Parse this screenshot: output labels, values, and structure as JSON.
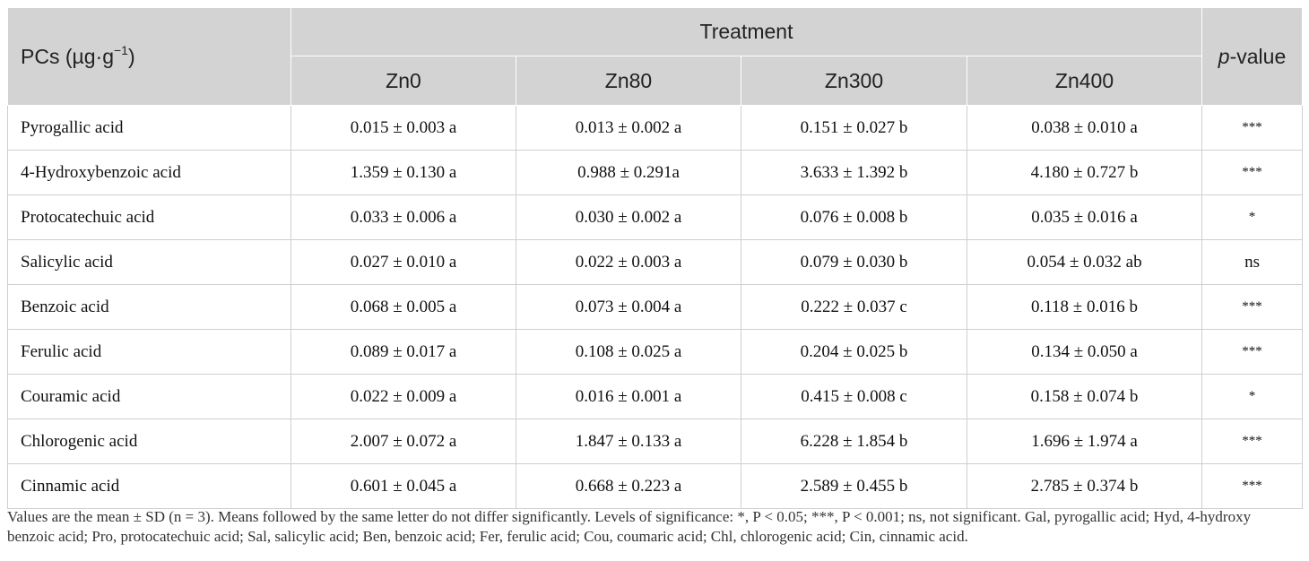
{
  "header": {
    "pcs_label": "PCs (µg·g",
    "pcs_exp": "−1",
    "pcs_close": ")",
    "treatment": "Treatment",
    "pvalue_italic": "p",
    "pvalue_rest": "-value",
    "treatments": [
      "Zn0",
      "Zn80",
      "Zn300",
      "Zn400"
    ]
  },
  "rows": [
    {
      "name": "Pyrogallic acid",
      "v": [
        "0.015 ± 0.003 a",
        "0.013 ± 0.002 a",
        "0.151 ± 0.027 b",
        "0.038 ± 0.010 a"
      ],
      "p": "***"
    },
    {
      "name": "4-Hydroxybenzoic acid",
      "v": [
        "1.359 ± 0.130 a",
        "0.988 ± 0.291a",
        "3.633 ± 1.392 b",
        "4.180 ± 0.727 b"
      ],
      "p": "***"
    },
    {
      "name": "Protocatechuic acid",
      "v": [
        "0.033 ± 0.006 a",
        "0.030 ± 0.002 a",
        "0.076 ± 0.008 b",
        "0.035 ± 0.016 a"
      ],
      "p": "*"
    },
    {
      "name": "Salicylic acid",
      "v": [
        "0.027 ± 0.010 a",
        "0.022 ± 0.003 a",
        "0.079 ± 0.030 b",
        "0.054 ± 0.032 ab"
      ],
      "p": "ns"
    },
    {
      "name": "Benzoic acid",
      "v": [
        "0.068 ± 0.005 a",
        "0.073 ± 0.004 a",
        "0.222 ± 0.037 c",
        "0.118 ± 0.016 b"
      ],
      "p": "***"
    },
    {
      "name": "Ferulic acid",
      "v": [
        "0.089 ± 0.017 a",
        "0.108 ± 0.025 a",
        "0.204 ± 0.025 b",
        "0.134 ± 0.050 a"
      ],
      "p": "***"
    },
    {
      "name": "Couramic acid",
      "v": [
        "0.022 ± 0.009 a",
        "0.016 ± 0.001 a",
        "0.415 ± 0.008 c",
        "0.158 ± 0.074 b"
      ],
      "p": "*"
    },
    {
      "name": "Chlorogenic acid",
      "v": [
        "2.007 ± 0.072 a",
        "1.847 ± 0.133 a",
        "6.228 ± 1.854 b",
        "1.696 ± 1.974 a"
      ],
      "p": "***"
    },
    {
      "name": "Cinnamic acid",
      "v": [
        "0.601 ± 0.045 a",
        "0.668 ± 0.223 a",
        "2.589 ± 0.455 b",
        "2.785 ± 0.374 b"
      ],
      "p": "***"
    }
  ],
  "footnote": "Values are the mean ± SD (n = 3). Means followed by the same letter do not differ significantly. Levels of significance: *, P < 0.05; ***, P < 0.001; ns, not significant. Gal, pyrogallic acid; Hyd, 4-hydroxy benzoic acid; Pro, protocatechuic acid; Sal, salicylic acid; Ben, benzoic acid; Fer, ferulic acid; Cou, coumaric acid; Chl, chlorogenic acid; Cin, cinnamic acid."
}
